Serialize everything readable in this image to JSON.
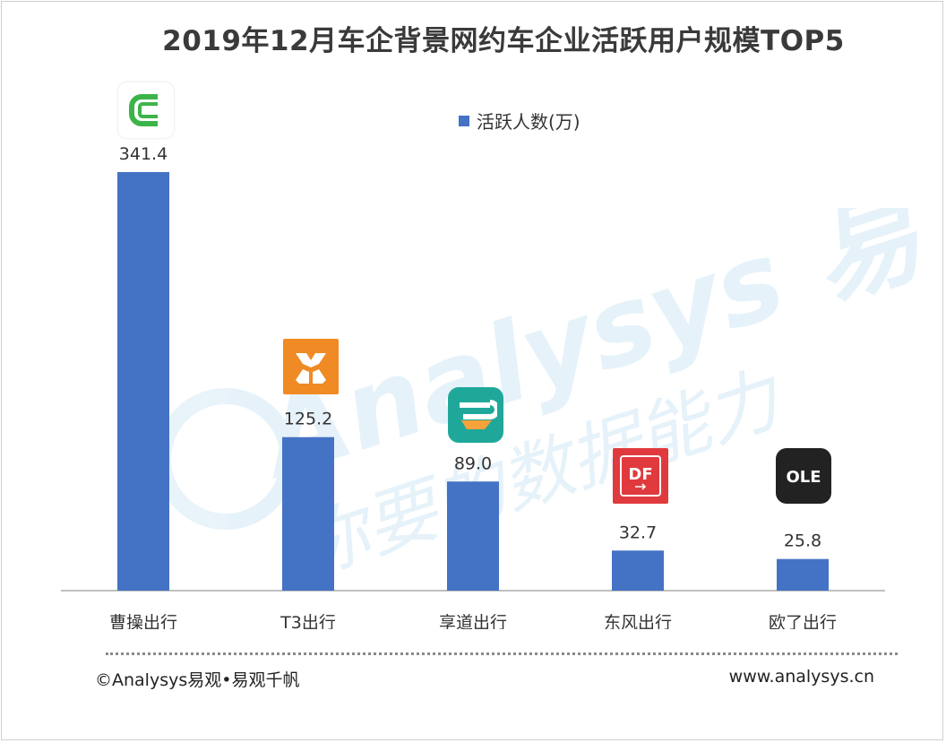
{
  "title": "2019年12月车企背景网约车企业活跃用户规模TOP5",
  "legend": {
    "label": "活跃人数(万)",
    "color": "#4472c4"
  },
  "footer": {
    "copyright": "©Analysys易观•易观千帆",
    "website": "www.analysys.cn"
  },
  "watermark": {
    "brand": "Analysys 易观",
    "slogan": "你要的数据能力"
  },
  "chart_data": {
    "type": "bar",
    "categories": [
      "曹操出行",
      "T3出行",
      "享道出行",
      "东风出行",
      "欧了出行"
    ],
    "series": [
      {
        "name": "活跃人数(万)",
        "values": [
          341.4,
          125.2,
          89.0,
          32.7,
          25.8
        ],
        "color": "#4472c4"
      }
    ],
    "data_labels": [
      "341.4",
      "125.2",
      "89.0",
      "32.7",
      "25.8"
    ],
    "ylim": [
      0,
      341.4
    ],
    "grid": false,
    "legend_position": "top-center"
  },
  "logos": [
    {
      "name": "caocao-logo-icon",
      "bg": "#ffffff",
      "accent": "#3cb44a"
    },
    {
      "name": "t3-logo-icon",
      "bg": "#f08a24",
      "accent": "#ffffff"
    },
    {
      "name": "xiangdao-logo-icon",
      "bg": "#1fa89a",
      "accent": "#f7a23b"
    },
    {
      "name": "dongfeng-logo-icon",
      "bg": "#e03a3e",
      "accent": "#ffffff"
    },
    {
      "name": "ole-logo-icon",
      "bg": "#222222",
      "accent": "#ffffff"
    }
  ]
}
